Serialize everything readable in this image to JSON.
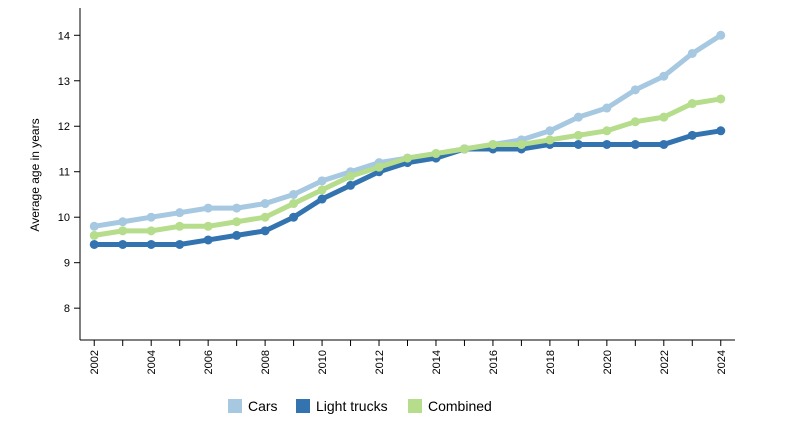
{
  "chart_data": {
    "type": "line",
    "ylabel": "Average age in years",
    "xlabel": "",
    "ylim": [
      7.3,
      14.6
    ],
    "xlim": [
      2001.5,
      2024.5
    ],
    "yticks": [
      8,
      9,
      10,
      11,
      12,
      13,
      14
    ],
    "xticks": [
      2002,
      2004,
      2006,
      2008,
      2010,
      2012,
      2014,
      2016,
      2018,
      2020,
      2022,
      2024
    ],
    "x": [
      2002,
      2003,
      2004,
      2005,
      2006,
      2007,
      2008,
      2009,
      2010,
      2011,
      2012,
      2013,
      2014,
      2015,
      2016,
      2017,
      2018,
      2019,
      2020,
      2021,
      2022,
      2023,
      2024
    ],
    "series": [
      {
        "name": "Cars",
        "color": "#a6c8e0",
        "values": [
          9.8,
          9.9,
          10.0,
          10.1,
          10.2,
          10.2,
          10.3,
          10.5,
          10.8,
          11.0,
          11.2,
          11.3,
          11.4,
          11.5,
          11.6,
          11.7,
          11.9,
          12.2,
          12.4,
          12.8,
          13.1,
          13.6,
          14.0
        ]
      },
      {
        "name": "Light trucks",
        "color": "#3373b0",
        "values": [
          9.4,
          9.4,
          9.4,
          9.4,
          9.5,
          9.6,
          9.7,
          10.0,
          10.4,
          10.7,
          11.0,
          11.2,
          11.3,
          11.5,
          11.5,
          11.5,
          11.6,
          11.6,
          11.6,
          11.6,
          11.6,
          11.8,
          11.9
        ]
      },
      {
        "name": "Combined",
        "color": "#b5dd8c",
        "values": [
          9.6,
          9.7,
          9.7,
          9.8,
          9.8,
          9.9,
          10.0,
          10.3,
          10.6,
          10.9,
          11.1,
          11.3,
          11.4,
          11.5,
          11.6,
          11.6,
          11.7,
          11.8,
          11.9,
          12.1,
          12.2,
          12.5,
          12.6
        ]
      }
    ]
  }
}
